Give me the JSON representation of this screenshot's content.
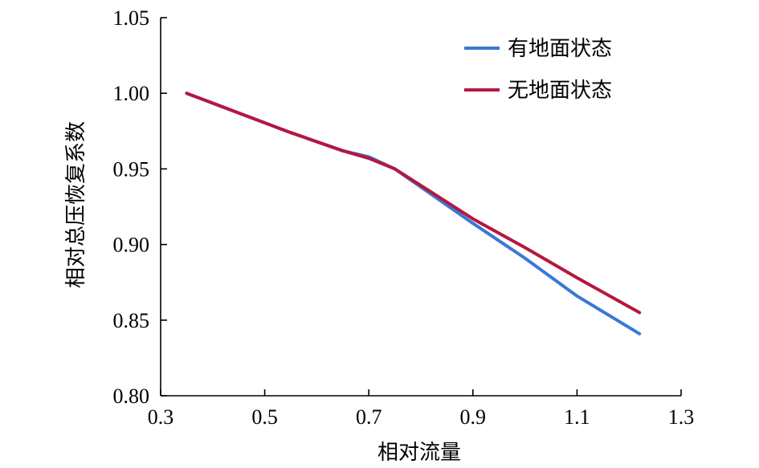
{
  "chart_data": {
    "type": "line",
    "xlabel": "相对流量",
    "ylabel": "相对总压恢复系数",
    "xlim": [
      0.3,
      1.3
    ],
    "ylim": [
      0.8,
      1.05
    ],
    "xticks": [
      "0.3",
      "0.5",
      "0.7",
      "0.9",
      "1.1",
      "1.3"
    ],
    "yticks": [
      "0.80",
      "0.85",
      "0.90",
      "0.95",
      "1.00",
      "1.05"
    ],
    "legend_position": "top-right",
    "series": [
      {
        "name": "有地面状态",
        "color": "#3a78d4",
        "x": [
          0.35,
          0.45,
          0.55,
          0.65,
          0.7,
          0.75,
          0.8,
          0.85,
          0.9,
          1.0,
          1.1,
          1.22
        ],
        "y": [
          1.0,
          0.987,
          0.974,
          0.962,
          0.958,
          0.95,
          0.938,
          0.926,
          0.914,
          0.891,
          0.866,
          0.841
        ]
      },
      {
        "name": "无地面状态",
        "color": "#b5173f",
        "x": [
          0.35,
          0.45,
          0.55,
          0.65,
          0.7,
          0.75,
          0.8,
          0.85,
          0.9,
          1.0,
          1.1,
          1.22
        ],
        "y": [
          1.0,
          0.987,
          0.974,
          0.962,
          0.957,
          0.95,
          0.939,
          0.928,
          0.917,
          0.898,
          0.878,
          0.855
        ]
      }
    ]
  }
}
